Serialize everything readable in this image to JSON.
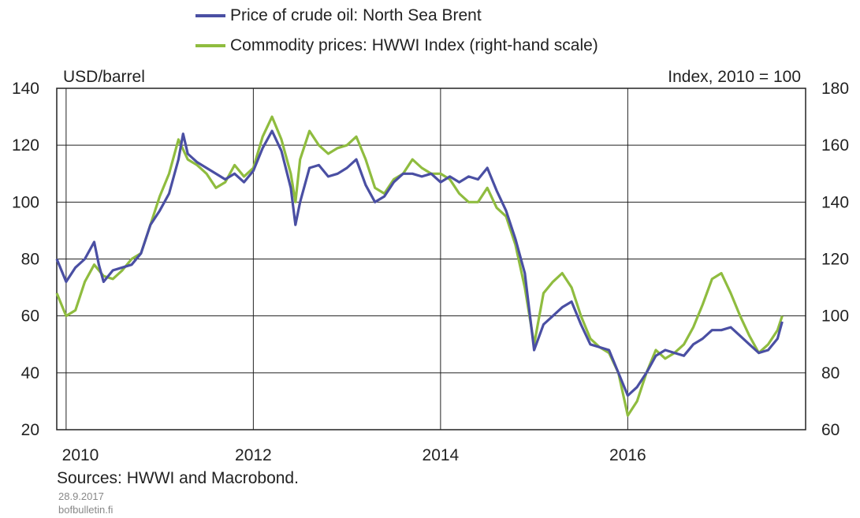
{
  "legend": [
    {
      "label": "Price of crude oil: North Sea Brent",
      "color": "#4a4fa3"
    },
    {
      "label": "Commodity prices: HWWI Index (right-hand scale)",
      "color": "#8fbc3f"
    }
  ],
  "footer": {
    "sources": "Sources: HWWI and Macrobond.",
    "date": "28.9.2017",
    "site": "bofbulletin.fi"
  },
  "chart_data": {
    "type": "line",
    "left_axis_unit": "USD/barrel",
    "right_axis_unit": "Index, 2010 = 100",
    "x_range": [
      2009.9,
      2017.9
    ],
    "x_ticks": [
      2010,
      2012,
      2014,
      2016
    ],
    "ylim_left": [
      20,
      140
    ],
    "yticks_left": [
      20,
      40,
      60,
      80,
      100,
      120,
      140
    ],
    "ylim_right": [
      60,
      180
    ],
    "yticks_right": [
      60,
      80,
      100,
      120,
      140,
      160,
      180
    ],
    "grid": true,
    "series": [
      {
        "name": "Price of crude oil: North Sea Brent",
        "axis": "left",
        "color": "#4a4fa3",
        "points": [
          [
            2009.9,
            80
          ],
          [
            2010.0,
            72
          ],
          [
            2010.1,
            77
          ],
          [
            2010.2,
            80
          ],
          [
            2010.3,
            86
          ],
          [
            2010.35,
            78
          ],
          [
            2010.4,
            72
          ],
          [
            2010.5,
            76
          ],
          [
            2010.6,
            77
          ],
          [
            2010.7,
            78
          ],
          [
            2010.8,
            82
          ],
          [
            2010.9,
            92
          ],
          [
            2011.0,
            97
          ],
          [
            2011.1,
            103
          ],
          [
            2011.2,
            115
          ],
          [
            2011.25,
            124
          ],
          [
            2011.3,
            117
          ],
          [
            2011.4,
            114
          ],
          [
            2011.5,
            112
          ],
          [
            2011.6,
            110
          ],
          [
            2011.7,
            108
          ],
          [
            2011.8,
            110
          ],
          [
            2011.9,
            107
          ],
          [
            2012.0,
            111
          ],
          [
            2012.1,
            119
          ],
          [
            2012.2,
            125
          ],
          [
            2012.3,
            118
          ],
          [
            2012.4,
            105
          ],
          [
            2012.45,
            92
          ],
          [
            2012.5,
            100
          ],
          [
            2012.6,
            112
          ],
          [
            2012.7,
            113
          ],
          [
            2012.8,
            109
          ],
          [
            2012.9,
            110
          ],
          [
            2013.0,
            112
          ],
          [
            2013.1,
            115
          ],
          [
            2013.2,
            106
          ],
          [
            2013.3,
            100
          ],
          [
            2013.4,
            102
          ],
          [
            2013.5,
            107
          ],
          [
            2013.6,
            110
          ],
          [
            2013.7,
            110
          ],
          [
            2013.8,
            109
          ],
          [
            2013.9,
            110
          ],
          [
            2014.0,
            107
          ],
          [
            2014.1,
            109
          ],
          [
            2014.2,
            107
          ],
          [
            2014.3,
            109
          ],
          [
            2014.4,
            108
          ],
          [
            2014.5,
            112
          ],
          [
            2014.6,
            104
          ],
          [
            2014.7,
            97
          ],
          [
            2014.8,
            87
          ],
          [
            2014.9,
            75
          ],
          [
            2015.0,
            48
          ],
          [
            2015.1,
            57
          ],
          [
            2015.2,
            60
          ],
          [
            2015.3,
            63
          ],
          [
            2015.4,
            65
          ],
          [
            2015.5,
            57
          ],
          [
            2015.6,
            50
          ],
          [
            2015.7,
            49
          ],
          [
            2015.8,
            48
          ],
          [
            2015.9,
            40
          ],
          [
            2016.0,
            32
          ],
          [
            2016.1,
            35
          ],
          [
            2016.2,
            40
          ],
          [
            2016.3,
            46
          ],
          [
            2016.4,
            48
          ],
          [
            2016.5,
            47
          ],
          [
            2016.6,
            46
          ],
          [
            2016.7,
            50
          ],
          [
            2016.8,
            52
          ],
          [
            2016.9,
            55
          ],
          [
            2017.0,
            55
          ],
          [
            2017.1,
            56
          ],
          [
            2017.2,
            53
          ],
          [
            2017.3,
            50
          ],
          [
            2017.4,
            47
          ],
          [
            2017.5,
            48
          ],
          [
            2017.6,
            52
          ],
          [
            2017.65,
            58
          ]
        ]
      },
      {
        "name": "Commodity prices: HWWI Index (right-hand scale)",
        "axis": "right",
        "color": "#8fbc3f",
        "points": [
          [
            2009.9,
            108
          ],
          [
            2010.0,
            100
          ],
          [
            2010.1,
            102
          ],
          [
            2010.2,
            112
          ],
          [
            2010.3,
            118
          ],
          [
            2010.4,
            114
          ],
          [
            2010.5,
            113
          ],
          [
            2010.6,
            116
          ],
          [
            2010.7,
            120
          ],
          [
            2010.8,
            122
          ],
          [
            2010.9,
            132
          ],
          [
            2011.0,
            142
          ],
          [
            2011.1,
            150
          ],
          [
            2011.2,
            162
          ],
          [
            2011.3,
            155
          ],
          [
            2011.4,
            153
          ],
          [
            2011.5,
            150
          ],
          [
            2011.6,
            145
          ],
          [
            2011.7,
            147
          ],
          [
            2011.8,
            153
          ],
          [
            2011.9,
            149
          ],
          [
            2012.0,
            152
          ],
          [
            2012.1,
            163
          ],
          [
            2012.2,
            170
          ],
          [
            2012.3,
            162
          ],
          [
            2012.4,
            150
          ],
          [
            2012.45,
            140
          ],
          [
            2012.5,
            155
          ],
          [
            2012.6,
            165
          ],
          [
            2012.7,
            160
          ],
          [
            2012.8,
            157
          ],
          [
            2012.9,
            159
          ],
          [
            2013.0,
            160
          ],
          [
            2013.1,
            163
          ],
          [
            2013.2,
            155
          ],
          [
            2013.3,
            145
          ],
          [
            2013.4,
            143
          ],
          [
            2013.5,
            148
          ],
          [
            2013.6,
            150
          ],
          [
            2013.7,
            155
          ],
          [
            2013.8,
            152
          ],
          [
            2013.9,
            150
          ],
          [
            2014.0,
            150
          ],
          [
            2014.1,
            148
          ],
          [
            2014.2,
            143
          ],
          [
            2014.3,
            140
          ],
          [
            2014.4,
            140
          ],
          [
            2014.5,
            145
          ],
          [
            2014.6,
            138
          ],
          [
            2014.7,
            135
          ],
          [
            2014.8,
            125
          ],
          [
            2014.9,
            110
          ],
          [
            2015.0,
            90
          ],
          [
            2015.1,
            108
          ],
          [
            2015.2,
            112
          ],
          [
            2015.3,
            115
          ],
          [
            2015.4,
            110
          ],
          [
            2015.5,
            100
          ],
          [
            2015.6,
            92
          ],
          [
            2015.7,
            89
          ],
          [
            2015.8,
            87
          ],
          [
            2015.9,
            80
          ],
          [
            2016.0,
            65
          ],
          [
            2016.1,
            70
          ],
          [
            2016.2,
            80
          ],
          [
            2016.3,
            88
          ],
          [
            2016.4,
            85
          ],
          [
            2016.5,
            87
          ],
          [
            2016.6,
            90
          ],
          [
            2016.7,
            96
          ],
          [
            2016.8,
            104
          ],
          [
            2016.9,
            113
          ],
          [
            2017.0,
            115
          ],
          [
            2017.1,
            108
          ],
          [
            2017.2,
            100
          ],
          [
            2017.3,
            93
          ],
          [
            2017.4,
            87
          ],
          [
            2017.5,
            90
          ],
          [
            2017.6,
            95
          ],
          [
            2017.65,
            100
          ]
        ]
      }
    ]
  }
}
